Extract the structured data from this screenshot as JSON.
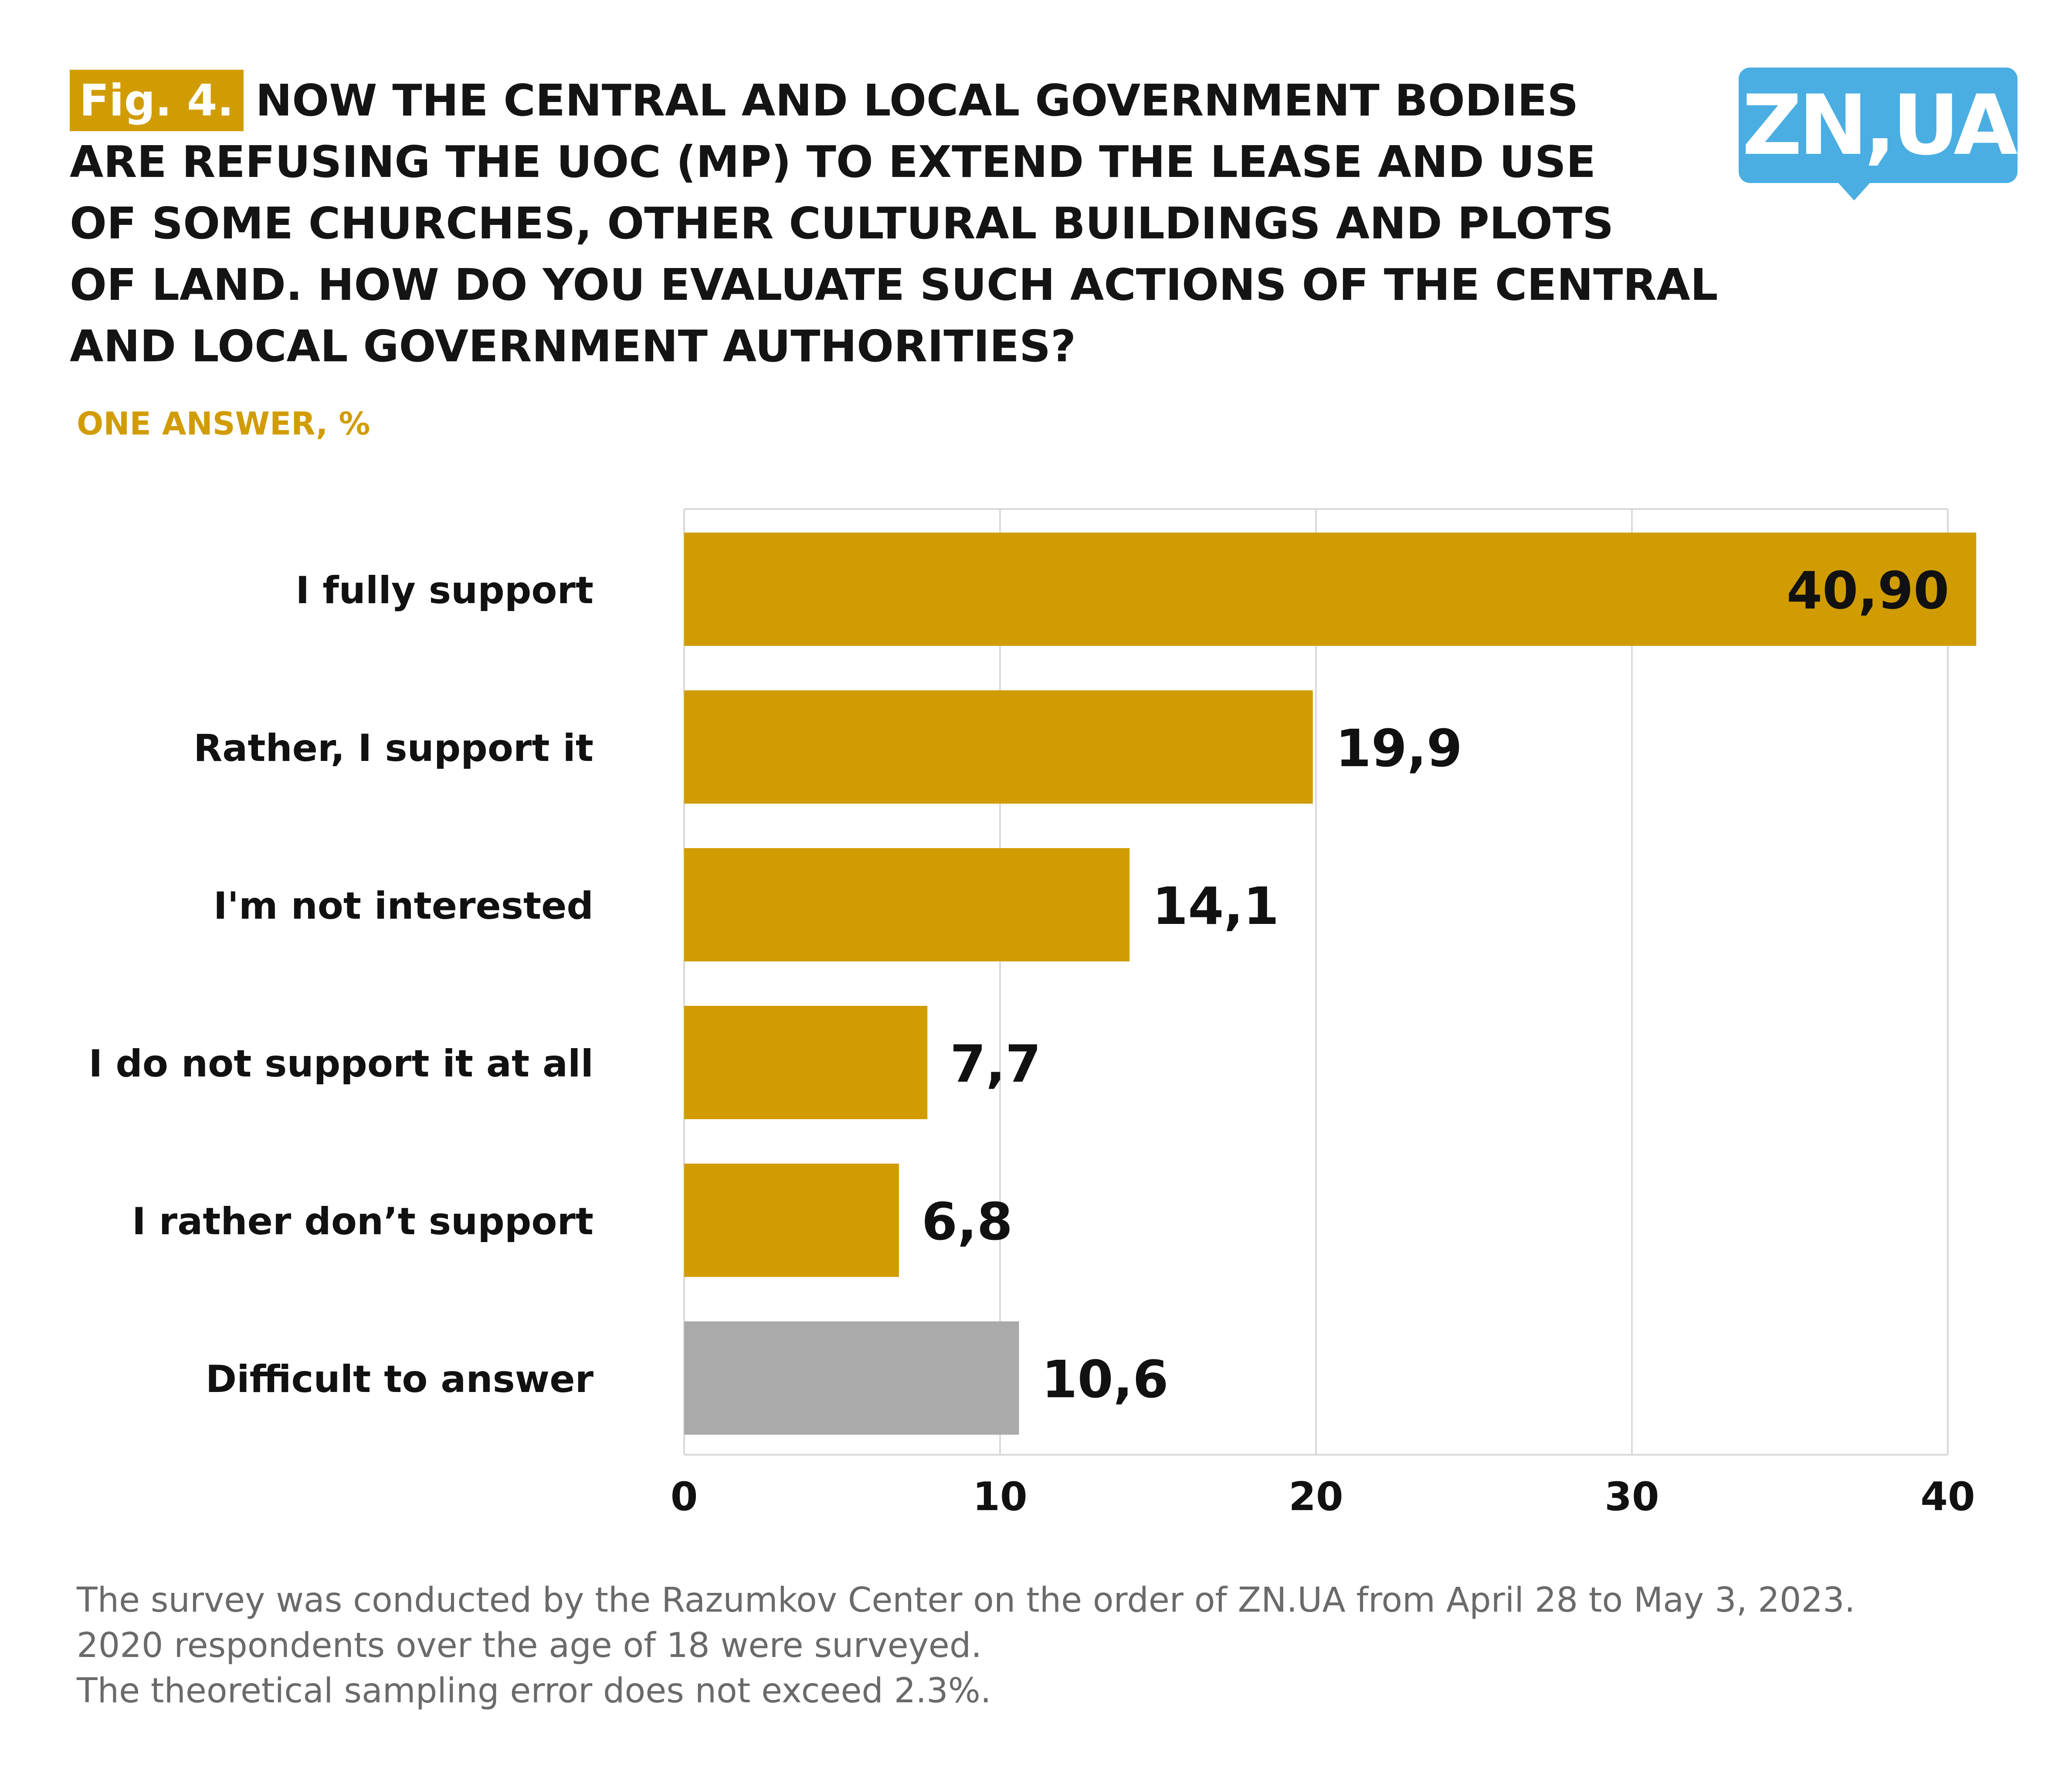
{
  "header": {
    "fig_label": "Fig. 4.",
    "title": "NOW THE CENTRAL AND LOCAL GOVERNMENT BODIES ARE REFUSING THE UOC (MP) TO EXTEND THE LEASE AND USE OF SOME CHURCHES, OTHER CULTURAL BUILDINGS AND PLOTS OF LAND. HOW DO YOU EVALUATE SUCH ACTIONS OF THE CENTRAL AND LOCAL GOVERNMENT AUTHORITIES?",
    "title_lines": [
      "NOW THE CENTRAL AND LOCAL GOVERNMENT BODIES",
      "ARE REFUSING THE UOC (MP) TO EXTEND THE LEASE AND USE",
      "OF SOME CHURCHES, OTHER CULTURAL BUILDINGS AND PLOTS",
      "OF LAND. HOW DO YOU EVALUATE SUCH ACTIONS OF THE CENTRAL",
      "AND LOCAL GOVERNMENT AUTHORITIES?"
    ],
    "subtitle": "ONE ANSWER, %"
  },
  "logo": {
    "text": "ZN,UA",
    "color": "#4aaee3"
  },
  "colors": {
    "accent": "#d19c02",
    "neutral_bar": "#aaaaaa",
    "grid": "#d9d9d9",
    "text": "#111111",
    "footnote": "#6a6a6a"
  },
  "chart_data": {
    "type": "bar",
    "orientation": "horizontal",
    "categories": [
      "I fully support",
      "Rather, I support it",
      "I'm not interested",
      "I do not support it at all",
      "I rather don’t support",
      "Difficult to answer"
    ],
    "values": [
      40.9,
      19.9,
      14.1,
      7.7,
      6.8,
      10.6
    ],
    "value_labels": [
      "40,90",
      "19,9",
      "14,1",
      "7,7",
      "6,8",
      "10,6"
    ],
    "bar_colors": [
      "#d19c02",
      "#d19c02",
      "#d19c02",
      "#d19c02",
      "#d19c02",
      "#aaaaaa"
    ],
    "xlim": [
      0,
      40
    ],
    "x_ticks": [
      0,
      10,
      20,
      30,
      40
    ],
    "x_tick_labels": [
      "0",
      "10",
      "20",
      "30",
      "40"
    ],
    "title": "NOW THE CENTRAL AND LOCAL GOVERNMENT BODIES ARE REFUSING THE UOC (MP) TO EXTEND THE LEASE AND USE OF SOME CHURCHES, OTHER CULTURAL BUILDINGS AND PLOTS OF LAND. HOW DO YOU EVALUATE SUCH ACTIONS OF THE CENTRAL AND LOCAL GOVERNMENT AUTHORITIES?",
    "subtitle": "ONE ANSWER, %",
    "xlabel": "",
    "ylabel": "",
    "grid": true,
    "legend": "none"
  },
  "footnote": {
    "lines": [
      "The survey was conducted by the Razumkov Center on the order of ZN.UA from April 28 to May 3, 2023.",
      "2020 respondents over the age of 18 were surveyed.",
      "The theoretical sampling error does not exceed 2.3%."
    ]
  }
}
